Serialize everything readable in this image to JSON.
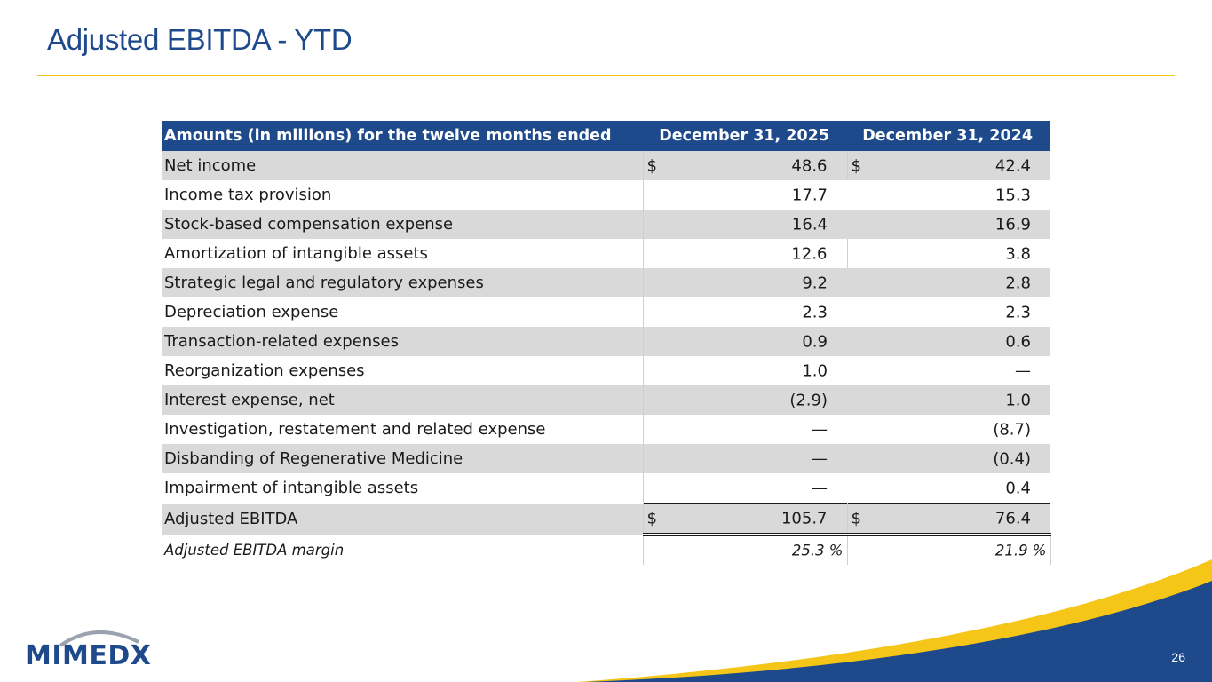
{
  "slide": {
    "title": "Adjusted EBITDA - YTD",
    "page_number": "26",
    "logo_text": "MIMEDX"
  },
  "colors": {
    "brand_blue": "#1e4a8c",
    "accent_yellow": "#f5c518",
    "row_shade": "#d9d9d9"
  },
  "table": {
    "header": {
      "label": "Amounts (in millions) for the twelve months ended",
      "col1": "December 31, 2025",
      "col2": "December 31, 2024"
    },
    "rows": [
      {
        "label": "Net income",
        "c1_cur": "$",
        "c1": "48.6",
        "c2_cur": "$",
        "c2": "42.4"
      },
      {
        "label": "Income tax provision",
        "c1": "17.7",
        "c2": "15.3"
      },
      {
        "label": "Stock-based compensation expense",
        "c1": "16.4",
        "c2": "16.9"
      },
      {
        "label": "Amortization of intangible assets",
        "c1": "12.6",
        "c2": "3.8"
      },
      {
        "label": "Strategic legal and regulatory expenses",
        "c1": "9.2",
        "c2": "2.8"
      },
      {
        "label": "Depreciation expense",
        "c1": "2.3",
        "c2": "2.3"
      },
      {
        "label": "Transaction-related expenses",
        "c1": "0.9",
        "c2": "0.6"
      },
      {
        "label": "Reorganization expenses",
        "c1": "1.0",
        "c2": "—"
      },
      {
        "label": "Interest expense, net",
        "c1": "(2.9)",
        "c2": "1.0"
      },
      {
        "label": "Investigation, restatement and related expense",
        "c1": "—",
        "c2": "(8.7)"
      },
      {
        "label": "Disbanding of Regenerative Medicine",
        "c1": "—",
        "c2": "(0.4)"
      },
      {
        "label": "Impairment of intangible assets",
        "c1": "—",
        "c2": "0.4"
      }
    ],
    "total": {
      "label": "Adjusted EBITDA",
      "c1_cur": "$",
      "c1": "105.7",
      "c2_cur": "$",
      "c2": "76.4"
    },
    "margin": {
      "label": "Adjusted EBITDA margin",
      "c1": "25.3 %",
      "c2": "21.9 %"
    }
  }
}
